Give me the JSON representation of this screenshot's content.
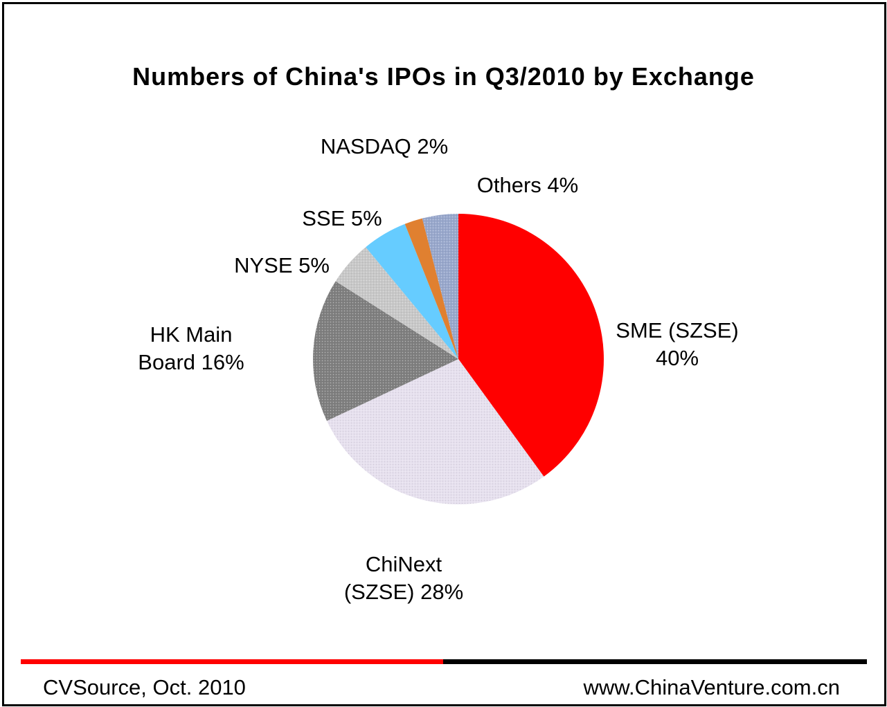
{
  "chart_data": {
    "type": "pie",
    "title": "Numbers of China's IPOs in Q3/2010  by Exchange",
    "slices": [
      {
        "label": [
          "SME (SZSE)",
          "40%"
        ],
        "value": 40,
        "color": "#ff0000",
        "pattern": "solid"
      },
      {
        "label": [
          "ChiNext",
          "(SZSE) 28%"
        ],
        "value": 28,
        "color": "#e6e0ee",
        "pattern": "dotted"
      },
      {
        "label": [
          "HK Main",
          "Board 16%"
        ],
        "value": 16,
        "color": "#808080",
        "pattern": "dotted"
      },
      {
        "label": [
          "NYSE 5%"
        ],
        "value": 5,
        "color": "#c8c8c8",
        "pattern": "dotted"
      },
      {
        "label": [
          "SSE 5%"
        ],
        "value": 5,
        "color": "#66ccff",
        "pattern": "solid"
      },
      {
        "label": [
          "NASDAQ 2%"
        ],
        "value": 2,
        "color": "#e08030",
        "pattern": "solid"
      },
      {
        "label": [
          "Others 4%"
        ],
        "value": 4,
        "color": "#99a8cc",
        "pattern": "dotted"
      }
    ]
  },
  "footer": {
    "source": "CVSource, Oct. 2010",
    "website": "www.ChinaVenture.com.cn"
  }
}
